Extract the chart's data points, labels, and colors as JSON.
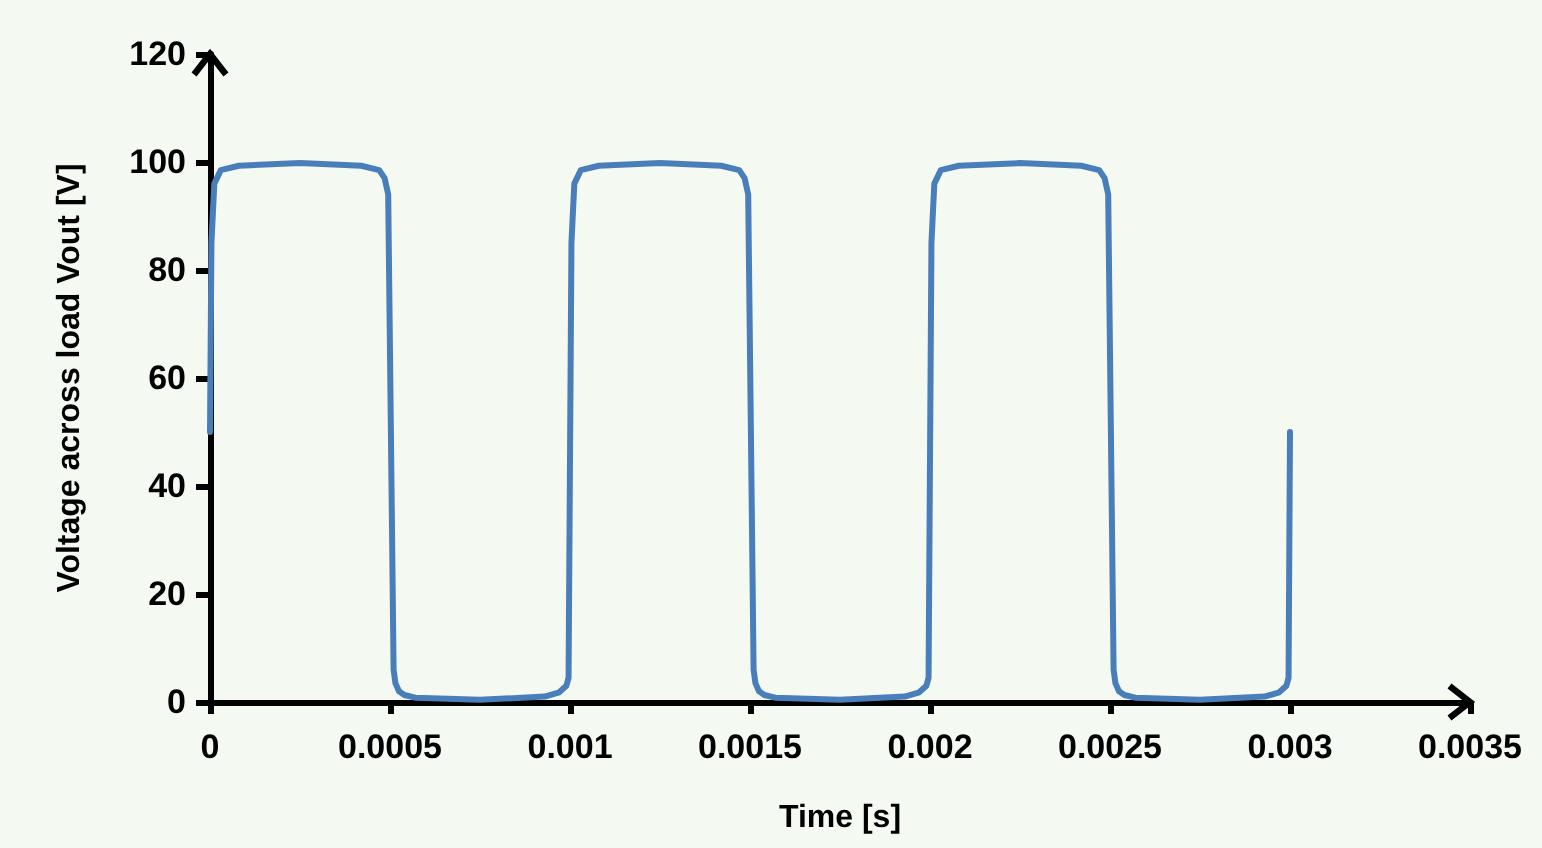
{
  "chart_data": {
    "type": "line",
    "xlabel": "Time [s]",
    "ylabel": "Voltage across load Vout [V]",
    "x": [
      0,
      4e-06,
      1.2e-05,
      3e-05,
      8e-05,
      0.00025,
      0.00042,
      0.00047,
      0.000485,
      0.000495,
      0.00051,
      0.000515,
      0.000525,
      0.00054,
      0.00057,
      0.00075,
      0.00093,
      0.00097,
      0.00099,
      0.000996,
      0.001004,
      0.001012,
      0.00103,
      0.00108,
      0.00125,
      0.00142,
      0.00147,
      0.001485,
      0.001495,
      0.00151,
      0.001515,
      0.001525,
      0.00154,
      0.00157,
      0.00175,
      0.00193,
      0.00197,
      0.00199,
      0.001996,
      0.002004,
      0.002012,
      0.00203,
      0.00208,
      0.00225,
      0.00242,
      0.00247,
      0.002485,
      0.002495,
      0.00251,
      0.002515,
      0.002525,
      0.00254,
      0.00257,
      0.00275,
      0.00293,
      0.00297,
      0.00299,
      0.002996,
      0.003
    ],
    "series": [
      {
        "color": "#4a7ebb",
        "values": [
          50,
          85,
          96,
          98.5,
          99.3,
          99.8,
          99.3,
          98.5,
          97,
          94,
          6,
          3.5,
          2,
          1.3,
          0.8,
          0.4,
          1,
          1.8,
          3,
          4.5,
          85,
          96,
          98.5,
          99.3,
          99.8,
          99.3,
          98.5,
          97,
          94,
          6,
          3.5,
          2,
          1.3,
          0.8,
          0.4,
          1,
          1.8,
          3,
          4.5,
          85,
          96,
          98.5,
          99.3,
          99.8,
          99.3,
          98.5,
          97,
          94,
          6,
          3.5,
          2,
          1.3,
          0.8,
          0.4,
          1,
          1.8,
          3,
          4.5,
          50
        ]
      }
    ],
    "xlim": [
      0,
      0.0035
    ],
    "xticks": [
      0,
      0.0005,
      0.001,
      0.0015,
      0.002,
      0.0025,
      0.003,
      0.0035
    ],
    "ylim": [
      0,
      120
    ],
    "yticks": [
      0,
      20,
      40,
      60,
      80,
      100,
      120
    ],
    "grid": false,
    "marker": "none",
    "line_style": "solid"
  }
}
